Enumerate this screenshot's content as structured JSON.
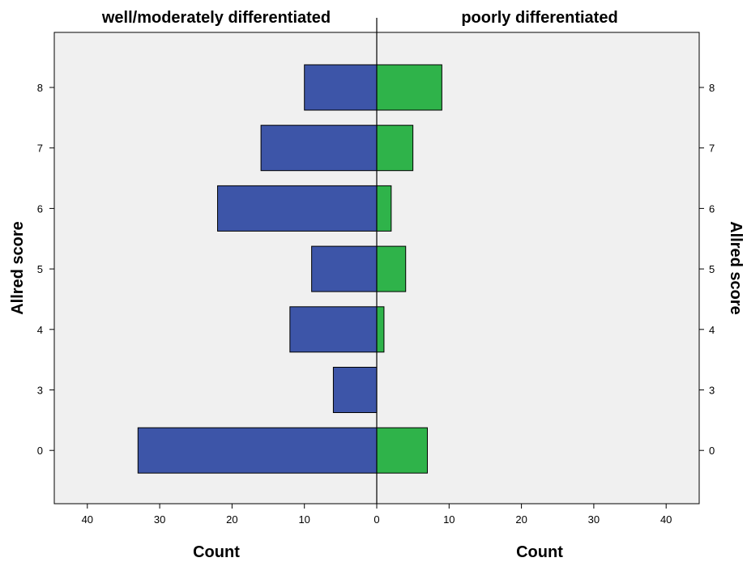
{
  "chart_data": {
    "type": "bar",
    "orientation": "horizontal",
    "layout": "population-pyramid",
    "categories": [
      "8",
      "7",
      "6",
      "5",
      "4",
      "3",
      "0"
    ],
    "series": [
      {
        "name": "well/moderately differentiated",
        "side": "left",
        "color": "#3d55a8",
        "values": [
          10,
          16,
          22,
          9,
          12,
          6,
          33
        ]
      },
      {
        "name": "poorly differentiated",
        "side": "right",
        "color": "#2fb34a",
        "values": [
          9,
          5,
          2,
          4,
          1,
          0,
          7
        ]
      }
    ],
    "xlabel_left": "Count",
    "xlabel_right": "Count",
    "ylabel_left": "Allred score",
    "ylabel_right": "Allred score",
    "xlim": [
      0,
      44
    ],
    "xticks": [
      0,
      10,
      20,
      30,
      40
    ],
    "grid": false,
    "plot_background": "#f0f0f0"
  }
}
